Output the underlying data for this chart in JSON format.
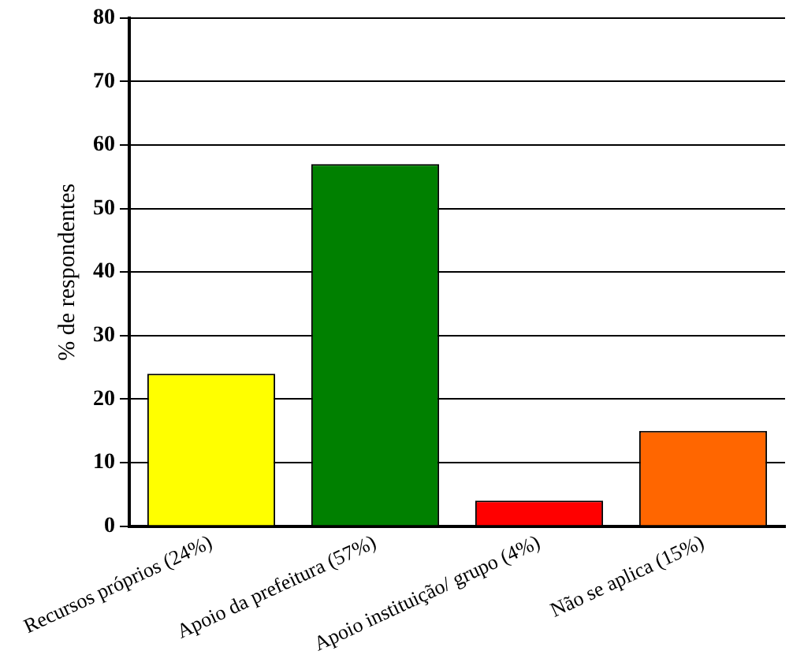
{
  "chart_data": {
    "type": "bar",
    "ylabel": "% de respondentes",
    "categories": [
      "Recursos próprios (24%)",
      "Apoio da prefeitura (57%)",
      "Apoio instituição/ grupo (4%)",
      "Não se aplica (15%)"
    ],
    "values": [
      24,
      57,
      4,
      15
    ],
    "colors": [
      "#ffff00",
      "#008000",
      "#ff0000",
      "#ff6600"
    ],
    "ylim": [
      0,
      80
    ],
    "yticks": [
      0,
      10,
      20,
      30,
      40,
      50,
      60,
      70,
      80
    ],
    "grid": "y",
    "legend": false
  }
}
